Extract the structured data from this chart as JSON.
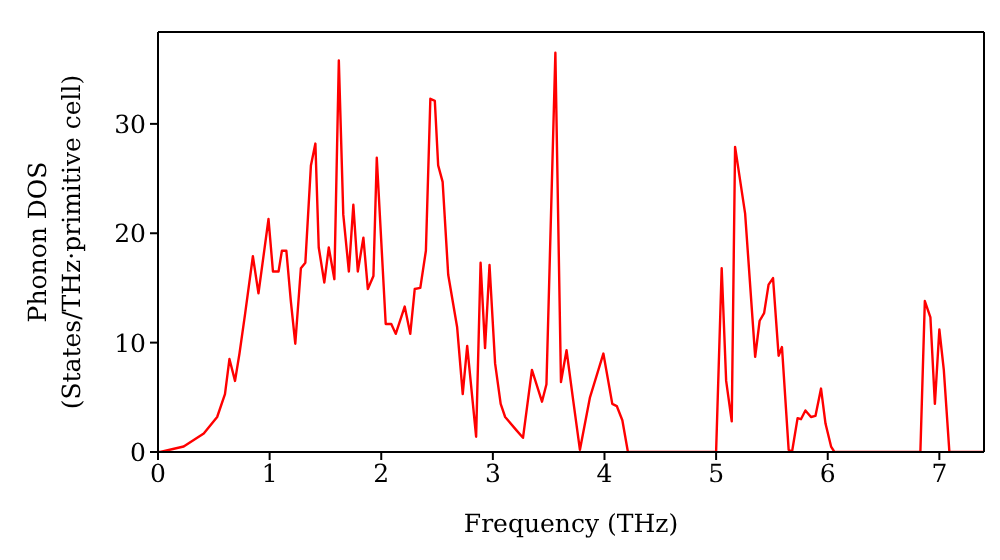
{
  "chart_data": {
    "type": "line",
    "xlabel": "Frequency (THz)",
    "ylabel": "Phonon DOS\n(States/THz·primitive cell)",
    "xlim": [
      0,
      7.4
    ],
    "ylim": [
      0,
      38.4
    ],
    "xticks": [
      0,
      1,
      2,
      3,
      4,
      5,
      6,
      7
    ],
    "yticks": [
      0,
      10,
      20,
      30
    ],
    "grid": false,
    "legend": false,
    "marker": "none",
    "line_style": "solid",
    "x": [
      0,
      0.02,
      0.23,
      0.41,
      0.53,
      0.6,
      0.64,
      0.69,
      0.73,
      0.78,
      0.85,
      0.9,
      0.99,
      1.03,
      1.08,
      1.11,
      1.15,
      1.19,
      1.23,
      1.28,
      1.32,
      1.37,
      1.41,
      1.44,
      1.49,
      1.53,
      1.58,
      1.62,
      1.66,
      1.71,
      1.75,
      1.79,
      1.84,
      1.88,
      1.93,
      1.96,
      2.04,
      2.09,
      2.13,
      2.21,
      2.26,
      2.3,
      2.35,
      2.4,
      2.44,
      2.48,
      2.51,
      2.55,
      2.6,
      2.68,
      2.73,
      2.77,
      2.85,
      2.89,
      2.93,
      2.97,
      3.02,
      3.07,
      3.11,
      3.21,
      3.27,
      3.35,
      3.44,
      3.48,
      3.56,
      3.61,
      3.66,
      3.72,
      3.78,
      3.87,
      3.99,
      4.07,
      4.11,
      4.16,
      4.21,
      5.0,
      5.05,
      5.09,
      5.14,
      5.17,
      5.26,
      5.35,
      5.39,
      5.43,
      5.47,
      5.51,
      5.56,
      5.59,
      5.65,
      5.68,
      5.73,
      5.76,
      5.8,
      5.85,
      5.89,
      5.94,
      5.98,
      6.03,
      6.06,
      6.83,
      6.87,
      6.92,
      6.96,
      7.0,
      7.04,
      7.09,
      7.4
    ],
    "series": [
      {
        "color": "#ff0000",
        "values": [
          0,
          0,
          0.5,
          1.7,
          3.2,
          5.3,
          8.5,
          6.5,
          9,
          12.6,
          17.9,
          14.5,
          21.3,
          16.5,
          16.5,
          18.4,
          18.4,
          13.8,
          9.9,
          16.8,
          17.3,
          26.2,
          28.2,
          18.7,
          15.5,
          18.7,
          15.8,
          35.8,
          21.7,
          16.5,
          22.6,
          16.5,
          19.6,
          14.9,
          16.1,
          26.9,
          11.7,
          11.7,
          10.8,
          13.3,
          10.8,
          14.9,
          15,
          18.4,
          32.3,
          32.1,
          26.2,
          24.7,
          16.2,
          11.4,
          5.3,
          9.7,
          1.4,
          17.3,
          9.5,
          17.1,
          8.1,
          4.4,
          3.2,
          2,
          1.3,
          7.5,
          4.6,
          6.2,
          36.5,
          6.4,
          9.3,
          4.7,
          0.2,
          5,
          9,
          4.4,
          4.2,
          2.9,
          0,
          0,
          16.8,
          6.5,
          2.8,
          27.9,
          21.8,
          8.7,
          12,
          12.7,
          15.3,
          15.9,
          8.8,
          9.6,
          0.2,
          0,
          3.1,
          3,
          3.8,
          3.2,
          3.3,
          5.8,
          2.6,
          0.5,
          0,
          0,
          13.8,
          12.3,
          4.4,
          11.2,
          7.5,
          0,
          0
        ]
      }
    ]
  }
}
